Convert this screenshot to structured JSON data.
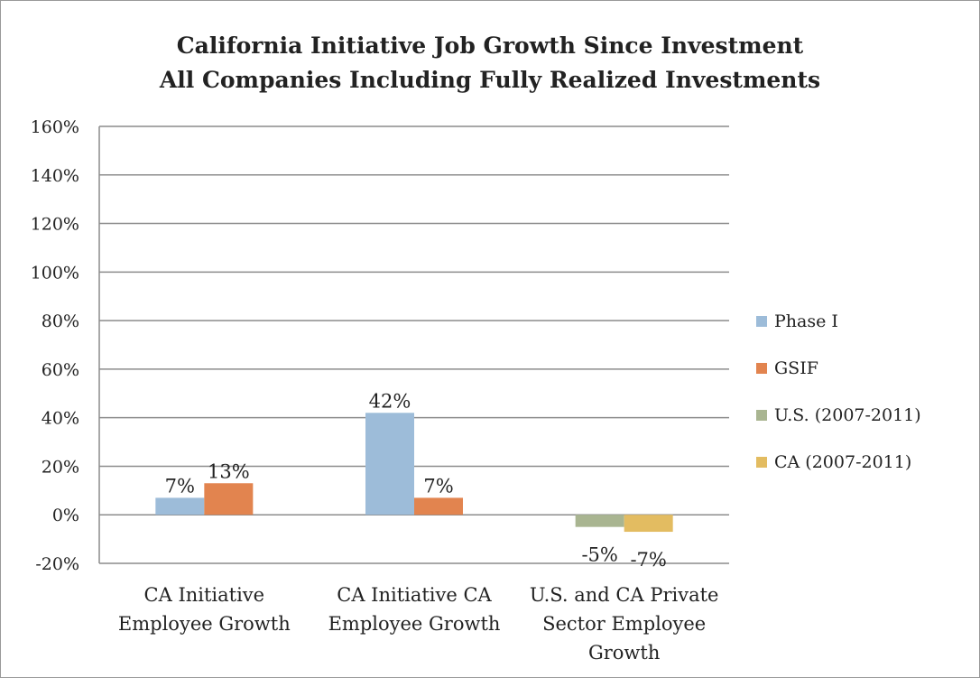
{
  "chart_data": {
    "type": "bar",
    "title": "California Initiative Job Growth Since Investment",
    "subtitle": "All Companies Including Fully Realized Investments",
    "categories": [
      [
        "CA Initiative",
        "Employee Growth"
      ],
      [
        "CA Initiative CA",
        "Employee Growth"
      ],
      [
        "U.S. and CA Private",
        "Sector Employee",
        "Growth"
      ]
    ],
    "series": [
      {
        "name": "Phase I",
        "color": "#9dbcd9",
        "values": [
          7,
          42,
          null
        ],
        "labels": [
          "7%",
          "42%",
          ""
        ]
      },
      {
        "name": "GSIF",
        "color": "#e2844f",
        "values": [
          13,
          7,
          null
        ],
        "labels": [
          "13%",
          "7%",
          ""
        ]
      },
      {
        "name": "U.S. (2007-2011)",
        "color": "#a9b591",
        "values": [
          null,
          null,
          -5
        ],
        "labels": [
          "",
          "",
          "-5%"
        ]
      },
      {
        "name": "CA (2007-2011)",
        "color": "#e3bc61",
        "values": [
          null,
          null,
          -7
        ],
        "labels": [
          "",
          "",
          "-7%"
        ]
      }
    ],
    "yticks": [
      "-20%",
      "0%",
      "20%",
      "40%",
      "60%",
      "80%",
      "100%",
      "120%",
      "140%",
      "160%"
    ],
    "ylim": [
      -20,
      160
    ],
    "ystep": 20,
    "grid": true,
    "legend_position": "right"
  }
}
